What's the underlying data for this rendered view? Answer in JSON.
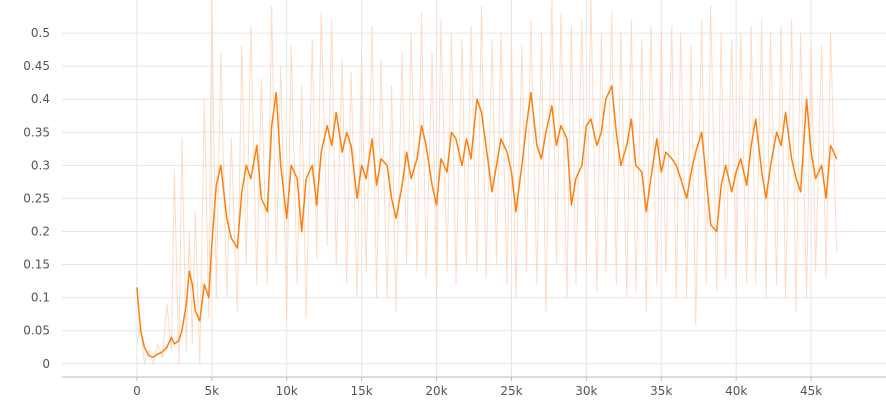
{
  "chart_data": {
    "type": "line",
    "title": "",
    "xlabel": "",
    "ylabel": "",
    "xlim": [
      -5000,
      50000
    ],
    "ylim": [
      -0.02,
      0.55
    ],
    "grid": true,
    "x_ticks": [
      0,
      5000,
      10000,
      15000,
      20000,
      25000,
      30000,
      35000,
      40000,
      45000
    ],
    "x_tick_labels": [
      "0",
      "5k",
      "10k",
      "15k",
      "20k",
      "25k",
      "30k",
      "35k",
      "40k",
      "45k"
    ],
    "y_ticks": [
      0,
      0.05,
      0.1,
      0.15,
      0.2,
      0.25,
      0.3,
      0.35,
      0.4,
      0.45,
      0.5
    ],
    "y_tick_labels": [
      "0",
      "0.05",
      "0.1",
      "0.15",
      "0.2",
      "0.25",
      "0.3",
      "0.35",
      "0.4",
      "0.45",
      "0.5"
    ],
    "colors": {
      "smoothed": "#ff7f0e",
      "raw": "#fdd3b8"
    },
    "series": [
      {
        "role": "smoothed",
        "x": [
          0,
          250,
          500,
          800,
          1100,
          1400,
          1700,
          2000,
          2300,
          2500,
          2800,
          3000,
          3300,
          3500,
          3700,
          3900,
          4200,
          4500,
          4800,
          5000,
          5300,
          5600,
          6000,
          6300,
          6700,
          7000,
          7300,
          7600,
          8000,
          8300,
          8700,
          9000,
          9300,
          9600,
          10000,
          10300,
          10700,
          11000,
          11300,
          11700,
          12000,
          12300,
          12700,
          13000,
          13300,
          13700,
          14000,
          14300,
          14700,
          15000,
          15300,
          15700,
          16000,
          16300,
          16700,
          17000,
          17300,
          17700,
          18000,
          18300,
          18700,
          19000,
          19300,
          19700,
          20000,
          20300,
          20700,
          21000,
          21300,
          21700,
          22000,
          22300,
          22700,
          23000,
          23300,
          23700,
          24000,
          24300,
          24700,
          25000,
          25300,
          25700,
          26000,
          26300,
          26700,
          27000,
          27300,
          27700,
          28000,
          28300,
          28700,
          29000,
          29300,
          29700,
          30000,
          30300,
          30700,
          31000,
          31300,
          31700,
          32000,
          32300,
          32700,
          33000,
          33300,
          33700,
          34000,
          34300,
          34700,
          35000,
          35300,
          35700,
          36000,
          36300,
          36700,
          37000,
          37300,
          37700,
          38000,
          38300,
          38700,
          39000,
          39300,
          39700,
          40000,
          40300,
          40700,
          41000,
          41300,
          41700,
          42000,
          42300,
          42700,
          43000,
          43300,
          43700,
          44000,
          44300,
          44700,
          45000,
          45300,
          45700,
          46000,
          46300,
          46700
        ],
        "y": [
          0.115,
          0.05,
          0.025,
          0.012,
          0.01,
          0.015,
          0.018,
          0.025,
          0.04,
          0.03,
          0.035,
          0.05,
          0.09,
          0.14,
          0.12,
          0.08,
          0.065,
          0.12,
          0.1,
          0.18,
          0.27,
          0.3,
          0.22,
          0.19,
          0.175,
          0.26,
          0.3,
          0.28,
          0.33,
          0.25,
          0.23,
          0.36,
          0.41,
          0.3,
          0.22,
          0.3,
          0.28,
          0.2,
          0.28,
          0.3,
          0.24,
          0.32,
          0.36,
          0.33,
          0.38,
          0.32,
          0.35,
          0.33,
          0.25,
          0.3,
          0.28,
          0.34,
          0.27,
          0.31,
          0.3,
          0.25,
          0.22,
          0.27,
          0.32,
          0.28,
          0.31,
          0.36,
          0.33,
          0.27,
          0.24,
          0.31,
          0.29,
          0.35,
          0.34,
          0.3,
          0.34,
          0.31,
          0.4,
          0.38,
          0.33,
          0.26,
          0.3,
          0.34,
          0.32,
          0.29,
          0.23,
          0.3,
          0.36,
          0.41,
          0.33,
          0.31,
          0.35,
          0.39,
          0.33,
          0.36,
          0.34,
          0.24,
          0.28,
          0.3,
          0.36,
          0.37,
          0.33,
          0.35,
          0.4,
          0.42,
          0.35,
          0.3,
          0.33,
          0.37,
          0.3,
          0.29,
          0.23,
          0.28,
          0.34,
          0.29,
          0.32,
          0.31,
          0.3,
          0.28,
          0.25,
          0.29,
          0.32,
          0.35,
          0.28,
          0.21,
          0.2,
          0.27,
          0.3,
          0.26,
          0.29,
          0.31,
          0.27,
          0.33,
          0.37,
          0.29,
          0.25,
          0.3,
          0.35,
          0.33,
          0.38,
          0.31,
          0.28,
          0.26,
          0.4,
          0.32,
          0.28,
          0.3,
          0.25,
          0.33,
          0.31
        ]
      },
      {
        "role": "raw",
        "x": [
          0,
          250,
          500,
          800,
          1100,
          1400,
          1700,
          2000,
          2300,
          2500,
          2800,
          3000,
          3300,
          3500,
          3700,
          3900,
          4200,
          4500,
          4800,
          5000,
          5300,
          5600,
          6000,
          6300,
          6700,
          7000,
          7300,
          7600,
          8000,
          8300,
          8700,
          9000,
          9300,
          9600,
          10000,
          10300,
          10700,
          11000,
          11300,
          11700,
          12000,
          12300,
          12700,
          13000,
          13300,
          13700,
          14000,
          14300,
          14700,
          15000,
          15300,
          15700,
          16000,
          16300,
          16700,
          17000,
          17300,
          17700,
          18000,
          18300,
          18700,
          19000,
          19300,
          19700,
          20000,
          20300,
          20700,
          21000,
          21300,
          21700,
          22000,
          22300,
          22700,
          23000,
          23300,
          23700,
          24000,
          24300,
          24700,
          25000,
          25300,
          25700,
          26000,
          26300,
          26700,
          27000,
          27300,
          27700,
          28000,
          28300,
          28700,
          29000,
          29300,
          29700,
          30000,
          30300,
          30700,
          31000,
          31300,
          31700,
          32000,
          32300,
          32700,
          33000,
          33300,
          33700,
          34000,
          34300,
          34700,
          35000,
          35300,
          35700,
          36000,
          36300,
          36700,
          37000,
          37300,
          37700,
          38000,
          38300,
          38700,
          39000,
          39300,
          39700,
          40000,
          40300,
          40700,
          41000,
          41300,
          41700,
          42000,
          42300,
          42700,
          43000,
          43300,
          43700,
          44000,
          44300,
          44700,
          45000,
          45300,
          45700,
          46000,
          46300,
          46700
        ],
        "y": [
          0.03,
          0.06,
          0.0,
          0.02,
          0.0,
          0.03,
          0.01,
          0.09,
          0.02,
          0.29,
          0.0,
          0.34,
          0.02,
          0.2,
          0.03,
          0.23,
          0.0,
          0.4,
          0.07,
          0.55,
          0.1,
          0.47,
          0.1,
          0.34,
          0.08,
          0.48,
          0.15,
          0.51,
          0.12,
          0.43,
          0.12,
          0.54,
          0.15,
          0.45,
          0.07,
          0.48,
          0.12,
          0.42,
          0.07,
          0.49,
          0.16,
          0.53,
          0.18,
          0.52,
          0.15,
          0.46,
          0.12,
          0.44,
          0.1,
          0.47,
          0.14,
          0.51,
          0.1,
          0.46,
          0.1,
          0.42,
          0.08,
          0.47,
          0.15,
          0.5,
          0.14,
          0.53,
          0.13,
          0.47,
          0.1,
          0.52,
          0.14,
          0.5,
          0.12,
          0.49,
          0.15,
          0.51,
          0.14,
          0.54,
          0.13,
          0.49,
          0.15,
          0.5,
          0.12,
          0.49,
          0.1,
          0.48,
          0.14,
          0.52,
          0.12,
          0.5,
          0.08,
          0.55,
          0.15,
          0.53,
          0.1,
          0.51,
          0.12,
          0.52,
          0.14,
          0.55,
          0.11,
          0.5,
          0.14,
          0.53,
          0.12,
          0.5,
          0.1,
          0.52,
          0.11,
          0.49,
          0.08,
          0.51,
          0.12,
          0.5,
          0.14,
          0.51,
          0.1,
          0.5,
          0.1,
          0.48,
          0.06,
          0.52,
          0.12,
          0.54,
          0.11,
          0.5,
          0.13,
          0.49,
          0.11,
          0.5,
          0.12,
          0.51,
          0.12,
          0.52,
          0.1,
          0.5,
          0.12,
          0.51,
          0.1,
          0.52,
          0.08,
          0.5,
          0.1,
          0.49,
          0.14,
          0.48,
          0.13,
          0.5,
          0.17
        ]
      }
    ]
  }
}
